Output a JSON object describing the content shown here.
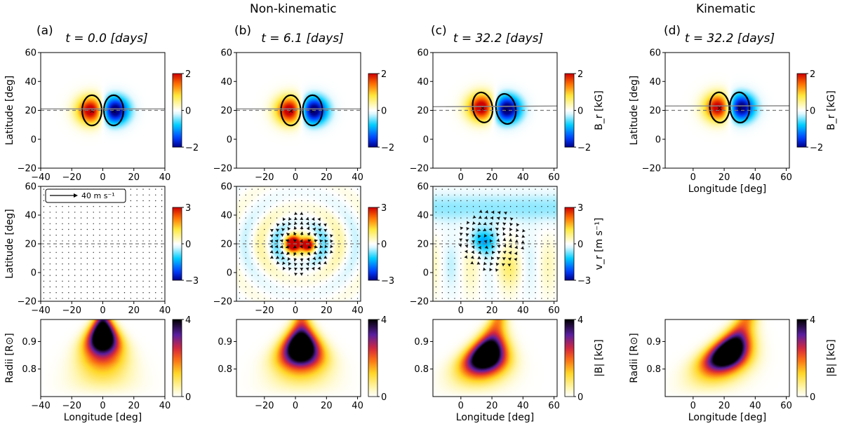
{
  "figure": {
    "header_nonkinematic": "Non-kinematic",
    "header_kinematic": "Kinematic",
    "panel_letters": [
      "(a)",
      "(b)",
      "(c)",
      "(d)"
    ],
    "column_titles": [
      "t = 0.0  [days]",
      "t = 6.1  [days]",
      "t = 32.2 [days]",
      "t = 32.2 [days]"
    ],
    "quiver_key": "40 m s⁻¹",
    "colorbar_labels": {
      "br": "B_r [kG]",
      "vr": "v_r [m s⁻¹]",
      "b": "|B| [kG]"
    }
  },
  "chart_data": [
    {
      "id": "a-top",
      "type": "heatmap",
      "quantity": "B_r",
      "xlabel": "",
      "ylabel": "Latitude [deg]",
      "xlim": [
        -40,
        40
      ],
      "ylim": [
        -20,
        60
      ],
      "xticks": [
        -40,
        -20,
        0,
        20,
        40
      ],
      "yticks": [
        -20,
        0,
        20,
        40,
        60
      ],
      "clim": [
        -2,
        2
      ],
      "cticks": [
        2,
        0,
        -2
      ],
      "cbar_label": "",
      "bipole": {
        "positive_center": [
          -7,
          20
        ],
        "negative_center": [
          7,
          20
        ],
        "tilt_deg": 0
      },
      "reference_latitude": 20
    },
    {
      "id": "b-top",
      "type": "heatmap",
      "quantity": "B_r",
      "xlabel": "",
      "ylabel": "",
      "xlim": [
        -38,
        42
      ],
      "ylim": [
        -20,
        60
      ],
      "xticks": [
        -20,
        0,
        20,
        40
      ],
      "yticks": [
        -20,
        0,
        20,
        40,
        60
      ],
      "clim": [
        -2,
        2
      ],
      "cticks": [
        2,
        0,
        -2
      ],
      "cbar_label": "",
      "bipole": {
        "positive_center": [
          -3,
          20
        ],
        "negative_center": [
          11,
          20
        ],
        "tilt_deg": 0
      },
      "reference_latitude": 20
    },
    {
      "id": "c-top",
      "type": "heatmap",
      "quantity": "B_r",
      "xlabel": "",
      "ylabel": "",
      "xlim": [
        -18,
        62
      ],
      "ylim": [
        -20,
        60
      ],
      "xticks": [
        0,
        20,
        40,
        60
      ],
      "yticks": [
        -20,
        0,
        20,
        40,
        60
      ],
      "clim": [
        -2,
        2
      ],
      "cticks": [
        2,
        0,
        -2
      ],
      "cbar_label": "B_r [kG]",
      "bipole": {
        "positive_center": [
          14,
          22
        ],
        "negative_center": [
          29,
          21
        ],
        "tilt_deg": 10
      },
      "reference_latitude": 20
    },
    {
      "id": "d-top",
      "type": "heatmap",
      "quantity": "B_r",
      "xlabel": "Longitude [deg]",
      "ylabel": "Latitude [deg]",
      "xlim": [
        -18,
        62
      ],
      "ylim": [
        -20,
        60
      ],
      "xticks": [
        0,
        20,
        40,
        60
      ],
      "yticks": [
        -20,
        0,
        20,
        40,
        60
      ],
      "clim": [
        -2,
        2
      ],
      "cticks": [
        2,
        0,
        -2
      ],
      "cbar_label": "B_r [kG]",
      "bipole": {
        "positive_center": [
          17,
          22
        ],
        "negative_center": [
          30,
          22
        ],
        "tilt_deg": 3
      },
      "reference_latitude": 20
    },
    {
      "id": "a-mid",
      "type": "heatmap",
      "quantity": "v_r",
      "xlabel": "",
      "ylabel": "Latitude [deg]",
      "xlim": [
        -40,
        40
      ],
      "ylim": [
        -20,
        60
      ],
      "xticks": [
        -40,
        -20,
        0,
        20,
        40
      ],
      "yticks": [
        -20,
        0,
        20,
        40,
        60
      ],
      "clim": [
        -3,
        3
      ],
      "cticks": [
        3,
        0,
        -3
      ],
      "cbar_label": "",
      "flow": "none",
      "reference_latitude": 20
    },
    {
      "id": "b-mid",
      "type": "heatmap",
      "quantity": "v_r",
      "xlabel": "",
      "ylabel": "",
      "xlim": [
        -38,
        42
      ],
      "ylim": [
        -20,
        60
      ],
      "xticks": [
        -20,
        0,
        20,
        40
      ],
      "yticks": [
        -20,
        0,
        20,
        40,
        60
      ],
      "clim": [
        -3,
        3
      ],
      "cticks": [
        3,
        0,
        -3
      ],
      "cbar_label": "",
      "flow": "rings",
      "flow_center": [
        3,
        20
      ],
      "reference_latitude": 20
    },
    {
      "id": "c-mid",
      "type": "heatmap",
      "quantity": "v_r",
      "xlabel": "",
      "ylabel": "",
      "xlim": [
        -18,
        62
      ],
      "ylim": [
        -20,
        60
      ],
      "xticks": [
        0,
        20,
        40,
        60
      ],
      "yticks": [
        -20,
        0,
        20,
        40,
        60
      ],
      "clim": [
        -3,
        3
      ],
      "cticks": [
        3,
        0,
        -3
      ],
      "cbar_label": "v_r [m s⁻¹]",
      "flow": "vortex",
      "flow_center": [
        20,
        23
      ],
      "reference_latitude": 20
    },
    {
      "id": "a-bot",
      "type": "heatmap",
      "quantity": "|B|",
      "xlabel": "Longitude [deg]",
      "ylabel": "Radii [R⊙]",
      "xlim": [
        -40,
        40
      ],
      "ylim": [
        0.7,
        0.98
      ],
      "xticks": [
        -40,
        -20,
        0,
        20,
        40
      ],
      "yticks": [
        0.8,
        0.9
      ],
      "clim": [
        0,
        4
      ],
      "cticks": [
        4,
        0
      ],
      "cbar_label": "",
      "tube": {
        "center_at_top": 0,
        "center_at_bottom": 0,
        "width_at_top": 4,
        "width_at_bottom": 16,
        "peak_radius": 0.92
      }
    },
    {
      "id": "b-bot",
      "type": "heatmap",
      "quantity": "|B|",
      "xlabel": "",
      "ylabel": "",
      "xlim": [
        -38,
        42
      ],
      "ylim": [
        0.7,
        0.98
      ],
      "xticks": [
        -20,
        0,
        20,
        40
      ],
      "yticks": [
        0.8,
        0.9
      ],
      "clim": [
        0,
        4
      ],
      "cticks": [
        4,
        0
      ],
      "cbar_label": "",
      "tube": {
        "center_at_top": 4,
        "center_at_bottom": 3,
        "width_at_top": 4,
        "width_at_bottom": 16,
        "peak_radius": 0.88
      }
    },
    {
      "id": "c-bot",
      "type": "heatmap",
      "quantity": "|B|",
      "xlabel": "Longitude [deg]",
      "ylabel": "",
      "xlim": [
        -18,
        62
      ],
      "ylim": [
        0.7,
        0.98
      ],
      "xticks": [
        0,
        20,
        40,
        60
      ],
      "yticks": [
        0.8,
        0.9
      ],
      "clim": [
        0,
        4
      ],
      "cticks": [
        4,
        0
      ],
      "cbar_label": "|B| [kG]",
      "tube": {
        "center_at_top": 24,
        "center_at_bottom": 8,
        "width_at_top": 4,
        "width_at_bottom": 14,
        "peak_radius": 0.85
      }
    },
    {
      "id": "d-bot",
      "type": "heatmap",
      "quantity": "|B|",
      "xlabel": "Longitude [deg]",
      "ylabel": "Radii [R⊙]",
      "xlim": [
        -18,
        62
      ],
      "ylim": [
        0.7,
        0.98
      ],
      "xticks": [
        0,
        20,
        40,
        60
      ],
      "yticks": [
        0.8,
        0.9
      ],
      "clim": [
        0,
        4
      ],
      "cticks": [
        4,
        0
      ],
      "cbar_label": "|B| [kG]",
      "tube": {
        "center_at_top": 34,
        "center_at_bottom": 8,
        "width_at_top": 5,
        "width_at_bottom": 14,
        "peak_radius": 0.86
      }
    }
  ]
}
